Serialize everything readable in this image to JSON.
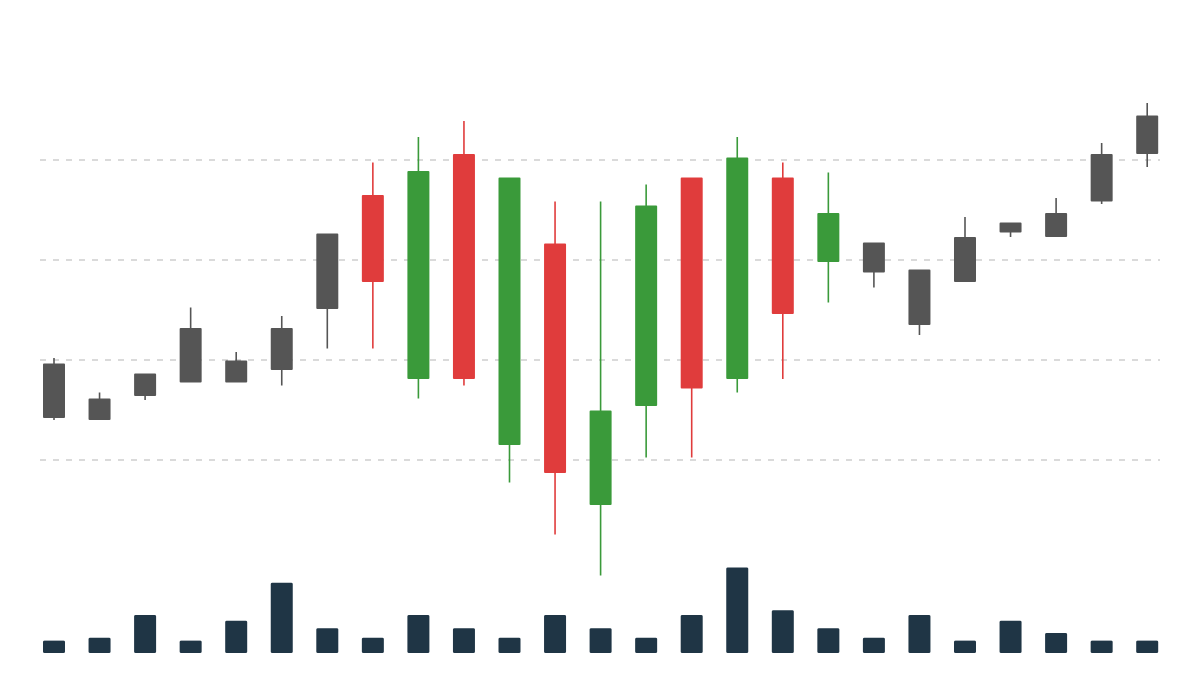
{
  "chart_data": {
    "type": "candlestick",
    "title": "",
    "xlabel": "",
    "ylabel": "",
    "grid": true,
    "ylim": [
      0,
      100
    ],
    "gridlines": [
      20,
      40,
      60,
      80
    ],
    "volume_ylim": [
      0,
      10
    ],
    "colors": {
      "up_highlight": "#3a9a3a",
      "down_highlight": "#e03c3c",
      "neutral": "#555555",
      "volume": "#1f3545",
      "grid": "#b5b5b5",
      "background": "#ffffff"
    },
    "candles": [
      {
        "open": 39.3,
        "close": 28.4,
        "high": 40.4,
        "low": 28.0,
        "color": "neutral"
      },
      {
        "open": 28.0,
        "close": 32.3,
        "high": 33.5,
        "low": 28.0,
        "color": "neutral"
      },
      {
        "open": 32.8,
        "close": 37.3,
        "high": 37.3,
        "low": 32.0,
        "color": "neutral"
      },
      {
        "open": 46.4,
        "close": 35.5,
        "high": 50.5,
        "low": 35.5,
        "color": "neutral"
      },
      {
        "open": 35.5,
        "close": 39.9,
        "high": 41.6,
        "low": 35.5,
        "color": "neutral"
      },
      {
        "open": 46.4,
        "close": 38.0,
        "high": 48.8,
        "low": 34.9,
        "color": "neutral"
      },
      {
        "open": 50.2,
        "close": 65.3,
        "high": 65.3,
        "low": 42.3,
        "color": "neutral"
      },
      {
        "open": 73.0,
        "close": 55.6,
        "high": 79.5,
        "low": 42.3,
        "color": "down_highlight"
      },
      {
        "open": 77.8,
        "close": 36.2,
        "high": 84.6,
        "low": 32.3,
        "color": "up_highlight"
      },
      {
        "open": 81.2,
        "close": 36.2,
        "high": 87.8,
        "low": 34.9,
        "color": "down_highlight"
      },
      {
        "open": 76.5,
        "close": 23.0,
        "high": 76.5,
        "low": 15.5,
        "color": "up_highlight"
      },
      {
        "open": 63.3,
        "close": 17.4,
        "high": 71.7,
        "low": 5.1,
        "color": "down_highlight"
      },
      {
        "open": 11.0,
        "close": 29.9,
        "high": 71.7,
        "low": -3.1,
        "color": "up_highlight"
      },
      {
        "open": 70.9,
        "close": 30.8,
        "high": 75.1,
        "low": 20.5,
        "color": "up_highlight"
      },
      {
        "open": 76.5,
        "close": 34.3,
        "high": 76.5,
        "low": 20.5,
        "color": "down_highlight"
      },
      {
        "open": 80.5,
        "close": 36.2,
        "high": 84.6,
        "low": 33.5,
        "color": "up_highlight"
      },
      {
        "open": 76.5,
        "close": 49.2,
        "high": 79.5,
        "low": 36.2,
        "color": "down_highlight"
      },
      {
        "open": 69.4,
        "close": 59.6,
        "high": 77.5,
        "low": 51.5,
        "color": "up_highlight"
      },
      {
        "open": 63.5,
        "close": 57.5,
        "high": 63.5,
        "low": 54.5,
        "color": "neutral"
      },
      {
        "open": 58.1,
        "close": 47.0,
        "high": 58.1,
        "low": 45.0,
        "color": "neutral"
      },
      {
        "open": 64.6,
        "close": 55.6,
        "high": 68.6,
        "low": 55.6,
        "color": "neutral"
      },
      {
        "open": 67.5,
        "close": 65.5,
        "high": 67.5,
        "low": 64.6,
        "color": "neutral"
      },
      {
        "open": 69.4,
        "close": 64.6,
        "high": 72.4,
        "low": 64.6,
        "color": "neutral"
      },
      {
        "open": 81.2,
        "close": 71.7,
        "high": 83.4,
        "low": 71.2,
        "color": "neutral"
      },
      {
        "open": 88.9,
        "close": 81.2,
        "high": 91.4,
        "low": 78.6,
        "color": "neutral"
      }
    ],
    "volume": [
      1.3,
      1.6,
      4.0,
      1.3,
      3.4,
      7.4,
      2.6,
      1.6,
      4.0,
      2.6,
      1.6,
      4.0,
      2.6,
      1.6,
      4.0,
      9.0,
      4.5,
      2.6,
      1.6,
      4.0,
      1.3,
      3.4,
      2.1,
      1.3,
      1.3
    ]
  }
}
